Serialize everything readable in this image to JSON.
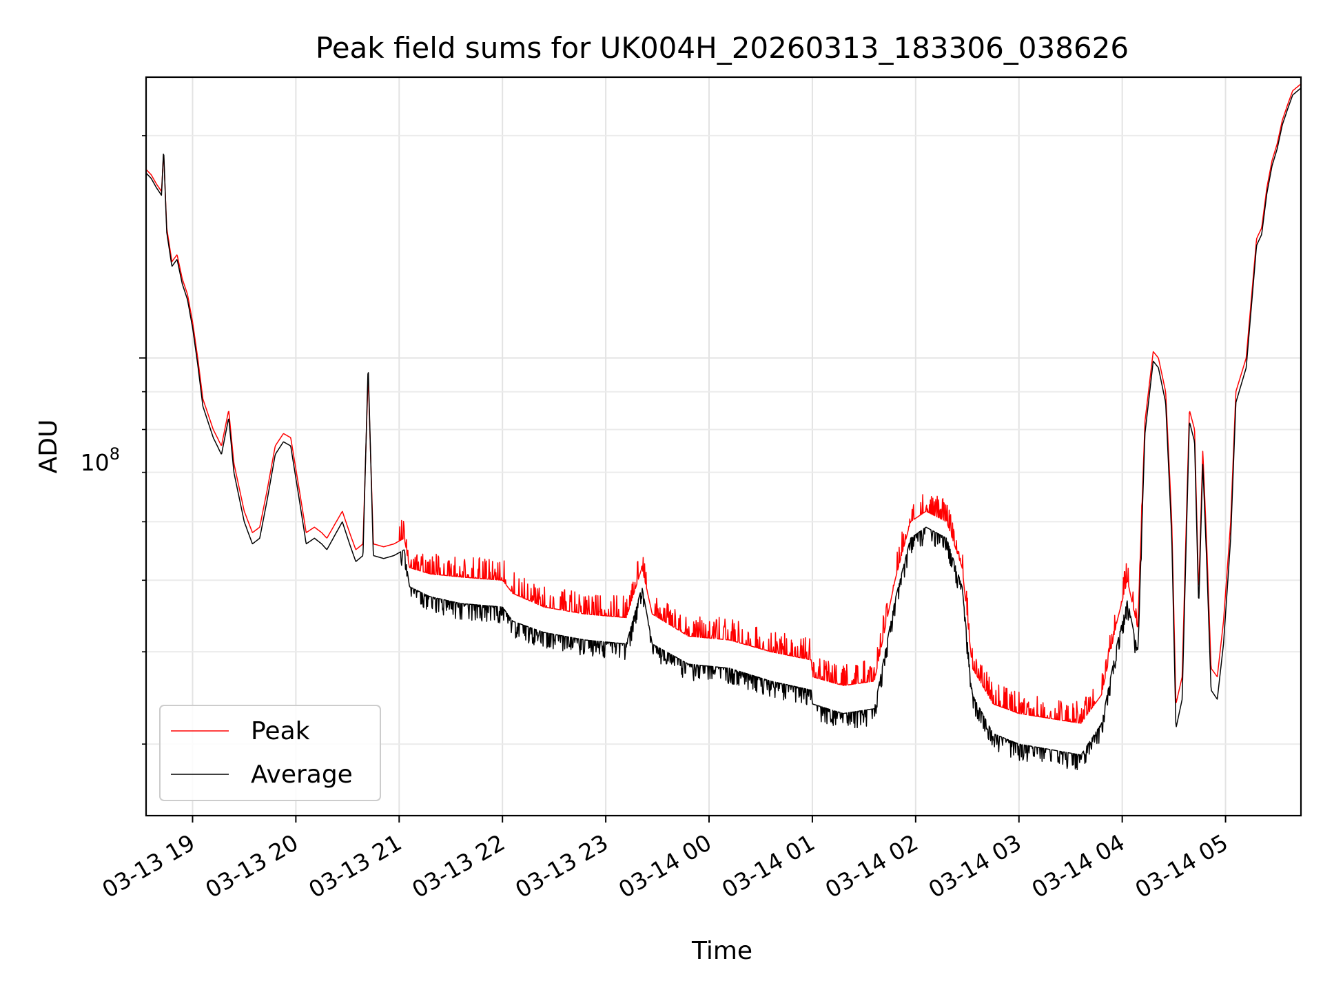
{
  "chart_data": {
    "type": "line",
    "title": "Peak field sums for UK004H_20260313_183306_038626",
    "xlabel": "Time",
    "ylabel": "ADU",
    "y_scale": "log",
    "y_tick_label": "10^8",
    "y_tick_base": "10",
    "y_tick_exp": "8",
    "ylim": [
      24000000,
      240000000
    ],
    "xlim_hours": [
      18.55,
      29.73
    ],
    "grid": true,
    "legend_position": "lower-left",
    "x_tick_hours": [
      19,
      20,
      21,
      22,
      23,
      24,
      25,
      26,
      27,
      28,
      29
    ],
    "x_tick_labels": [
      "03-13 19",
      "03-13 20",
      "03-13 21",
      "03-13 22",
      "03-13 23",
      "03-14 00",
      "03-14 01",
      "03-14 02",
      "03-14 03",
      "03-14 04",
      "03-14 05"
    ],
    "y_minor_ticks": [
      30000000,
      40000000,
      50000000,
      60000000,
      70000000,
      80000000,
      90000000,
      200000000
    ],
    "series": [
      {
        "name": "Peak",
        "color": "#ff0000",
        "noise_above_average": 0.07,
        "points": [
          [
            18.55,
            180000000.0
          ],
          [
            18.6,
            177000000.0
          ],
          [
            18.65,
            172000000.0
          ],
          [
            18.7,
            168000000.0
          ],
          [
            18.72,
            190000000.0
          ],
          [
            18.75,
            150000000.0
          ],
          [
            18.8,
            135000000.0
          ],
          [
            18.85,
            138000000.0
          ],
          [
            18.9,
            128000000.0
          ],
          [
            18.95,
            122000000.0
          ],
          [
            19.0,
            112000000.0
          ],
          [
            19.05,
            100000000.0
          ],
          [
            19.1,
            88000000.0
          ],
          [
            19.2,
            80000000.0
          ],
          [
            19.28,
            76000000.0
          ],
          [
            19.35,
            85000000.0
          ],
          [
            19.4,
            72000000.0
          ],
          [
            19.5,
            62000000.0
          ],
          [
            19.58,
            58000000.0
          ],
          [
            19.65,
            59000000.0
          ],
          [
            19.72,
            66000000.0
          ],
          [
            19.8,
            76000000.0
          ],
          [
            19.88,
            79000000.0
          ],
          [
            19.95,
            78000000.0
          ],
          [
            20.02,
            68000000.0
          ],
          [
            20.1,
            58000000.0
          ],
          [
            20.18,
            59000000.0
          ],
          [
            20.25,
            58000000.0
          ],
          [
            20.3,
            57000000.0
          ],
          [
            20.45,
            62000000.0
          ],
          [
            20.52,
            58000000.0
          ],
          [
            20.58,
            55000000.0
          ],
          [
            20.65,
            56000000.0
          ],
          [
            20.7,
            95000000.0
          ],
          [
            20.75,
            56000000.0
          ],
          [
            20.85,
            55500000.0
          ],
          [
            20.95,
            56000000.0
          ],
          [
            21.05,
            57000000.0
          ],
          [
            21.1,
            52000000.0
          ],
          [
            21.3,
            51000000.0
          ],
          [
            21.6,
            50500000.0
          ],
          [
            22.0,
            50000000.0
          ],
          [
            22.1,
            48000000.0
          ],
          [
            22.4,
            46000000.0
          ],
          [
            22.8,
            45000000.0
          ],
          [
            23.2,
            44500000.0
          ],
          [
            23.35,
            52000000.0
          ],
          [
            23.45,
            45000000.0
          ],
          [
            23.8,
            42000000.0
          ],
          [
            24.2,
            41500000.0
          ],
          [
            24.6,
            40000000.0
          ],
          [
            24.99,
            39000000.0
          ],
          [
            25.0,
            37000000.0
          ],
          [
            25.3,
            36000000.0
          ],
          [
            25.6,
            36500000.0
          ],
          [
            25.8,
            50000000.0
          ],
          [
            25.95,
            60000000.0
          ],
          [
            26.1,
            62000000.0
          ],
          [
            26.3,
            60000000.0
          ],
          [
            26.45,
            52000000.0
          ],
          [
            26.55,
            38000000.0
          ],
          [
            26.75,
            34000000.0
          ],
          [
            27.0,
            33000000.0
          ],
          [
            27.3,
            32500000.0
          ],
          [
            27.6,
            32000000.0
          ],
          [
            27.8,
            35000000.0
          ],
          [
            27.95,
            44000000.0
          ],
          [
            28.05,
            50000000.0
          ],
          [
            28.15,
            43000000.0
          ],
          [
            28.22,
            82000000.0
          ],
          [
            28.3,
            102000000.0
          ],
          [
            28.35,
            100000000.0
          ],
          [
            28.42,
            90000000.0
          ],
          [
            28.48,
            60000000.0
          ],
          [
            28.52,
            34000000.0
          ],
          [
            28.58,
            37000000.0
          ],
          [
            28.62,
            60000000.0
          ],
          [
            28.65,
            85000000.0
          ],
          [
            28.7,
            80000000.0
          ],
          [
            28.74,
            48000000.0
          ],
          [
            28.78,
            75000000.0
          ],
          [
            28.82,
            55000000.0
          ],
          [
            28.86,
            38000000.0
          ],
          [
            28.92,
            37000000.0
          ],
          [
            28.98,
            44000000.0
          ],
          [
            29.05,
            60000000.0
          ],
          [
            29.1,
            90000000.0
          ],
          [
            29.2,
            100000000.0
          ],
          [
            29.3,
            145000000.0
          ],
          [
            29.35,
            150000000.0
          ],
          [
            29.4,
            170000000.0
          ],
          [
            29.45,
            185000000.0
          ],
          [
            29.5,
            195000000.0
          ],
          [
            29.55,
            210000000.0
          ],
          [
            29.6,
            220000000.0
          ],
          [
            29.65,
            230000000.0
          ],
          [
            29.73,
            235000000.0
          ]
        ]
      },
      {
        "name": "Average",
        "color": "#000000",
        "noise_below_average": 0.05,
        "points": [
          [
            18.55,
            178000000.0
          ],
          [
            18.6,
            175000000.0
          ],
          [
            18.65,
            170000000.0
          ],
          [
            18.7,
            166000000.0
          ],
          [
            18.72,
            192000000.0
          ],
          [
            18.75,
            148000000.0
          ],
          [
            18.8,
            133000000.0
          ],
          [
            18.85,
            136000000.0
          ],
          [
            18.9,
            126000000.0
          ],
          [
            18.95,
            120000000.0
          ],
          [
            19.0,
            110000000.0
          ],
          [
            19.05,
            98000000.0
          ],
          [
            19.1,
            86000000.0
          ],
          [
            19.2,
            78000000.0
          ],
          [
            19.28,
            74000000.0
          ],
          [
            19.35,
            83000000.0
          ],
          [
            19.4,
            70000000.0
          ],
          [
            19.5,
            60000000.0
          ],
          [
            19.58,
            56000000.0
          ],
          [
            19.65,
            57000000.0
          ],
          [
            19.72,
            64000000.0
          ],
          [
            19.8,
            74000000.0
          ],
          [
            19.88,
            77000000.0
          ],
          [
            19.95,
            76000000.0
          ],
          [
            20.02,
            66000000.0
          ],
          [
            20.1,
            56000000.0
          ],
          [
            20.18,
            57000000.0
          ],
          [
            20.25,
            56000000.0
          ],
          [
            20.3,
            55000000.0
          ],
          [
            20.45,
            60000000.0
          ],
          [
            20.52,
            56000000.0
          ],
          [
            20.58,
            53000000.0
          ],
          [
            20.65,
            54000000.0
          ],
          [
            20.7,
            98000000.0
          ],
          [
            20.75,
            54000000.0
          ],
          [
            20.85,
            53500000.0
          ],
          [
            20.95,
            54000000.0
          ],
          [
            21.05,
            55000000.0
          ],
          [
            21.1,
            49000000.0
          ],
          [
            21.3,
            47500000.0
          ],
          [
            21.6,
            46500000.0
          ],
          [
            22.0,
            46000000.0
          ],
          [
            22.1,
            44000000.0
          ],
          [
            22.4,
            42500000.0
          ],
          [
            22.8,
            41500000.0
          ],
          [
            23.2,
            41000000.0
          ],
          [
            23.35,
            49000000.0
          ],
          [
            23.45,
            41000000.0
          ],
          [
            23.8,
            38500000.0
          ],
          [
            24.2,
            38000000.0
          ],
          [
            24.6,
            36500000.0
          ],
          [
            24.99,
            35500000.0
          ],
          [
            25.0,
            34000000.0
          ],
          [
            25.3,
            33000000.0
          ],
          [
            25.6,
            33500000.0
          ],
          [
            25.8,
            47000000.0
          ],
          [
            25.95,
            57000000.0
          ],
          [
            26.1,
            59000000.0
          ],
          [
            26.3,
            57000000.0
          ],
          [
            26.45,
            49000000.0
          ],
          [
            26.55,
            35000000.0
          ],
          [
            26.75,
            31000000.0
          ],
          [
            27.0,
            30000000.0
          ],
          [
            27.3,
            29500000.0
          ],
          [
            27.6,
            29000000.0
          ],
          [
            27.8,
            32000000.0
          ],
          [
            27.95,
            41000000.0
          ],
          [
            28.05,
            47000000.0
          ],
          [
            28.15,
            40000000.0
          ],
          [
            28.22,
            79000000.0
          ],
          [
            28.3,
            99000000.0
          ],
          [
            28.35,
            97000000.0
          ],
          [
            28.42,
            87000000.0
          ],
          [
            28.48,
            57000000.0
          ],
          [
            28.52,
            31500000.0
          ],
          [
            28.58,
            34500000.0
          ],
          [
            28.62,
            57000000.0
          ],
          [
            28.65,
            82000000.0
          ],
          [
            28.7,
            77000000.0
          ],
          [
            28.74,
            46000000.0
          ],
          [
            28.78,
            72000000.0
          ],
          [
            28.82,
            52000000.0
          ],
          [
            28.86,
            35500000.0
          ],
          [
            28.92,
            34500000.0
          ],
          [
            28.98,
            41000000.0
          ],
          [
            29.05,
            57000000.0
          ],
          [
            29.1,
            87000000.0
          ],
          [
            29.2,
            97000000.0
          ],
          [
            29.3,
            142000000.0
          ],
          [
            29.35,
            147000000.0
          ],
          [
            29.4,
            167000000.0
          ],
          [
            29.45,
            182000000.0
          ],
          [
            29.5,
            192000000.0
          ],
          [
            29.55,
            207000000.0
          ],
          [
            29.6,
            217000000.0
          ],
          [
            29.65,
            227000000.0
          ],
          [
            29.73,
            232000000.0
          ]
        ]
      }
    ]
  }
}
